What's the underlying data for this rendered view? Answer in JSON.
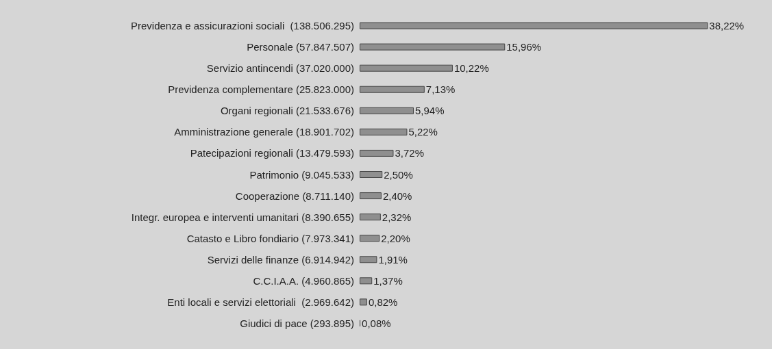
{
  "chart_data": {
    "type": "bar",
    "orientation": "horizontal",
    "tick_labels": "y",
    "categories": [
      "Previdenza e assicurazioni sociali  (138.506.295)",
      "Personale (57.847.507)",
      "Servizio antincendi (37.020.000)",
      "Previdenza complementare (25.823.000)",
      "Organi regionali (21.533.676)",
      "Amministrazione generale (18.901.702)",
      "Patecipazioni regionali (13.479.593)",
      "Patrimonio (9.045.533)",
      "Cooperazione (8.711.140)",
      "Integr. europea e interventi umanitari (8.390.655)",
      "Catasto e Libro fondiario (7.973.341)",
      "Servizi delle finanze (6.914.942)",
      "C.C.I.A.A. (4.960.865)",
      "Enti locali e servizi elettoriali  (2.969.642)",
      "Giudici di pace (293.895)"
    ],
    "series": [
      {
        "color": "#8f8f8f",
        "values": [
          38.22,
          15.96,
          10.22,
          7.13,
          5.94,
          5.22,
          3.72,
          2.5,
          2.4,
          2.32,
          2.2,
          1.91,
          1.37,
          0.82,
          0.08
        ],
        "value_labels": [
          "38,22%",
          "15,96%",
          "10,22%",
          "7,13%",
          "5,94%",
          "5,22%",
          "3,72%",
          "2,50%",
          "2,40%",
          "2,32%",
          "2,20%",
          "1,91%",
          "1,37%",
          "0,82%",
          "0,08%"
        ]
      }
    ]
  }
}
